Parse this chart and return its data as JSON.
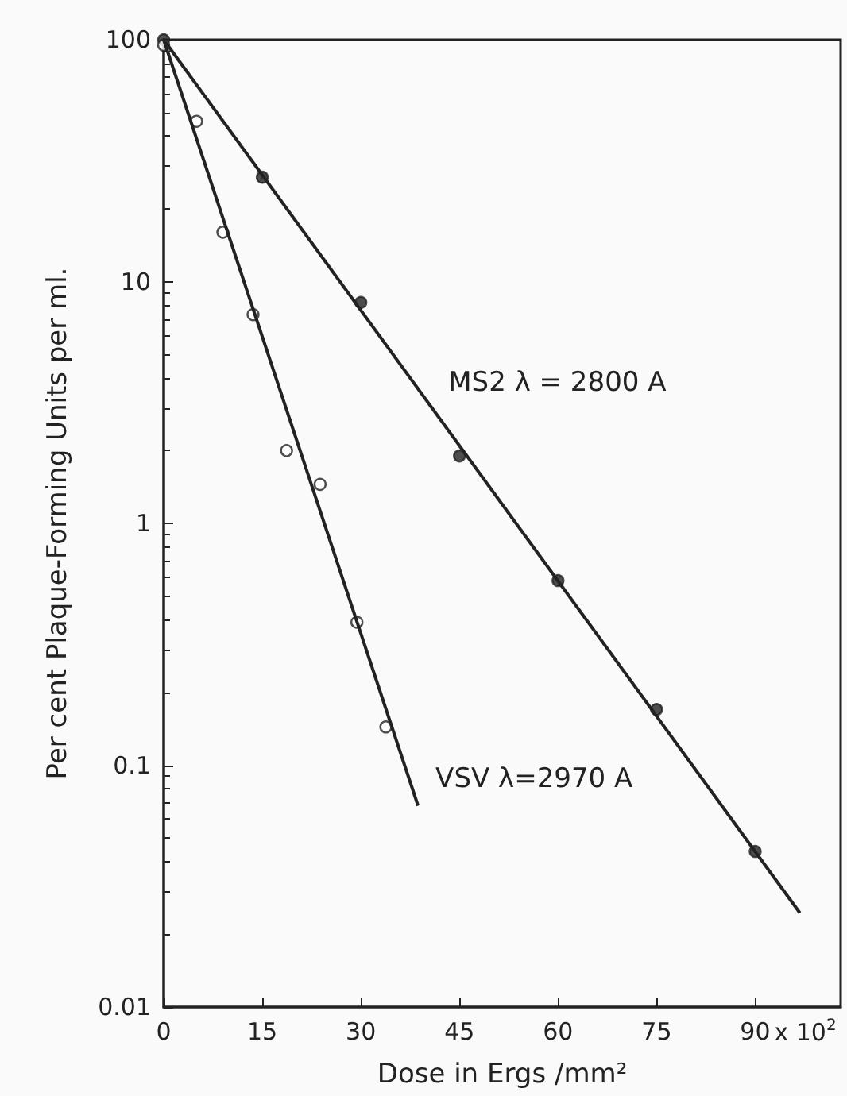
{
  "chart_data": {
    "type": "scatter",
    "xlabel": "Dose in Ergs /mm²",
    "ylabel": "Per cent Plaque-Forming Units per ml.",
    "xlim": [
      0,
      103
    ],
    "xticks": [
      0,
      15,
      30,
      45,
      60,
      75,
      90
    ],
    "ylim": [
      0.01,
      100
    ],
    "yticks": [
      0.01,
      0.1,
      1,
      10,
      100
    ],
    "log": "y",
    "grid": false,
    "series": [
      {
        "color": "#222222",
        "marker": "circle",
        "x": [
          0,
          15,
          30,
          45,
          60,
          75,
          90
        ],
        "values": [
          100,
          27,
          8.2,
          1.9,
          0.58,
          0.17,
          0.044
        ]
      },
      {
        "color": "#ffffff",
        "marker": "circle",
        "x": [
          0,
          5,
          9,
          13.6,
          18.7,
          23.8,
          29.4,
          33.8
        ],
        "values": [
          95,
          46,
          16,
          7.3,
          2.0,
          1.45,
          0.39,
          0.144
        ]
      },
      {
        "type": "line",
        "name": "MS2 λ = 2800 A",
        "marker": "none",
        "color": "#222222",
        "x": [
          0,
          96.8
        ],
        "values": [
          100,
          0.0245
        ]
      },
      {
        "type": "line",
        "name": "VSV λ=2970 A",
        "marker": "none",
        "color": "#222222",
        "x": [
          0,
          38.7
        ],
        "values": [
          100,
          0.068
        ]
      }
    ],
    "annotations": [
      "x 10$^{2}$"
    ]
  }
}
